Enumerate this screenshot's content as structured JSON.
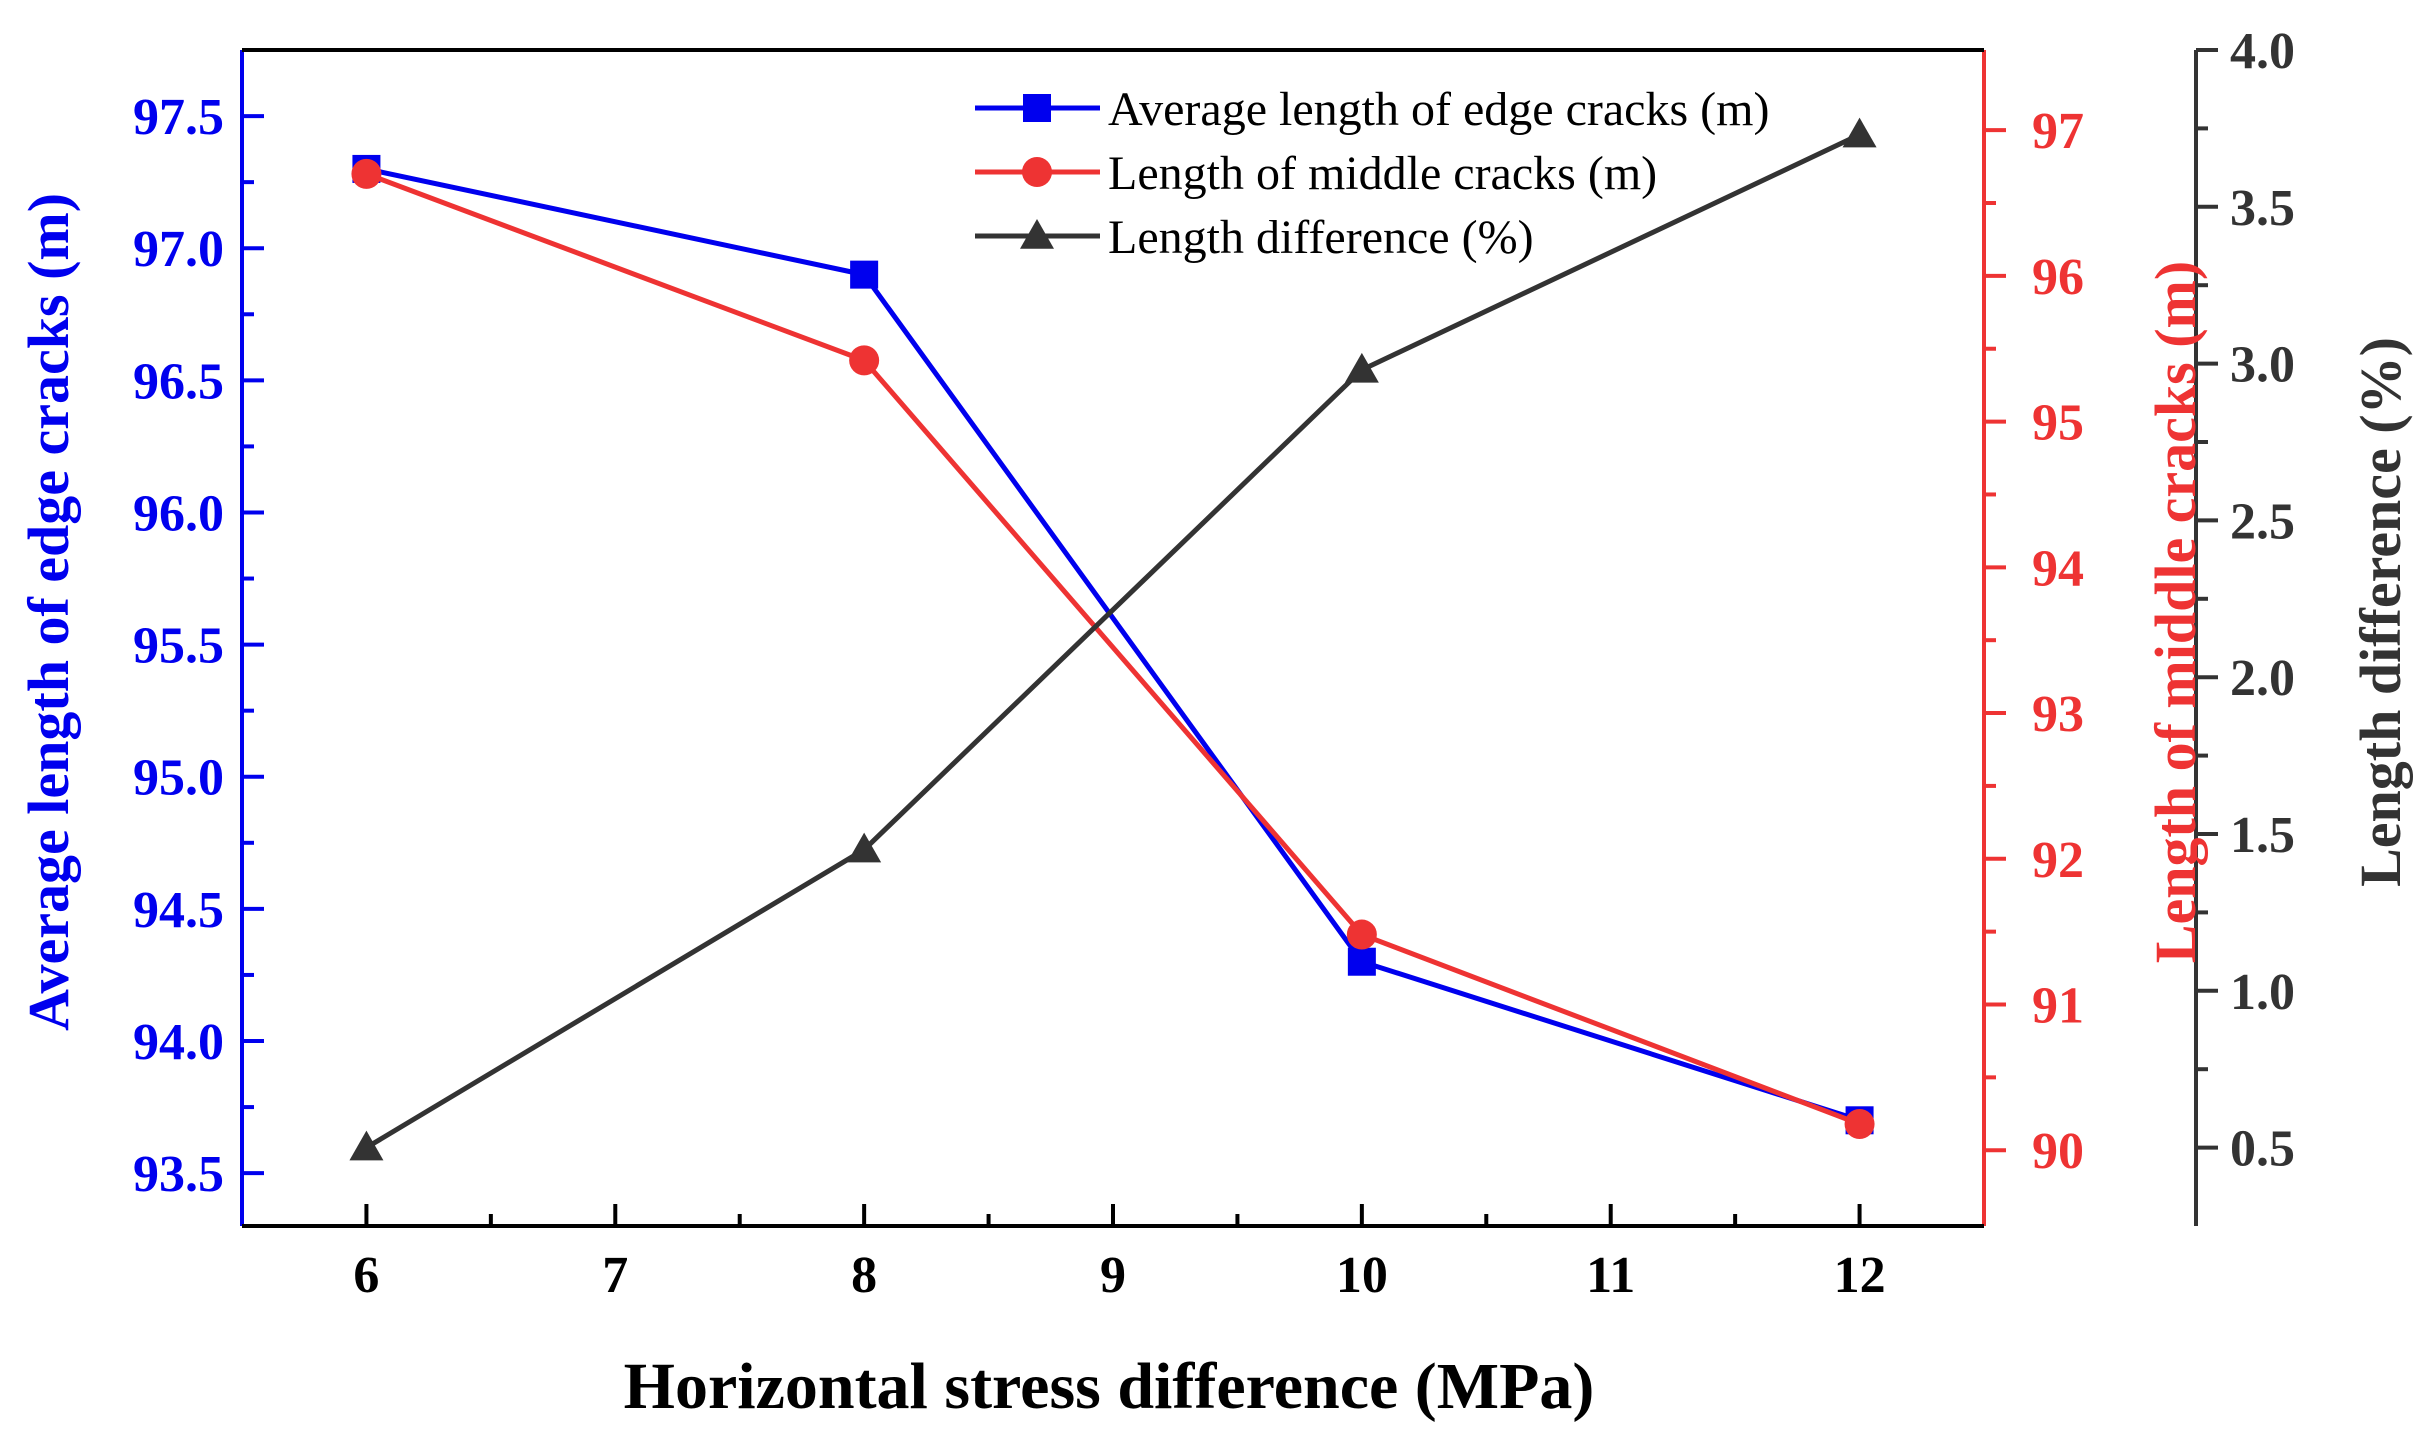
{
  "chart_data": {
    "type": "line",
    "xlabel": "Horizontal stress difference (MPa)",
    "x": [
      6,
      8,
      10,
      12
    ],
    "xlim": [
      5.5,
      12.5
    ],
    "xticks": [
      6,
      7,
      8,
      9,
      10,
      11,
      12
    ],
    "grid": false,
    "legend_position": "top-right",
    "axes": {
      "left": {
        "label": "Average length of edge cracks (m)",
        "range": [
          93.3,
          97.75
        ],
        "ticks": [
          "93.5",
          "94.0",
          "94.5",
          "95.0",
          "95.5",
          "96.0",
          "96.5",
          "97.0",
          "97.5"
        ],
        "color": "#0000ee"
      },
      "right": {
        "label": "Length of middle cracks (m)",
        "range": [
          89.48,
          97.55
        ],
        "ticks": [
          "90",
          "91",
          "92",
          "93",
          "94",
          "95",
          "96",
          "97"
        ],
        "color": "#ee3333"
      },
      "far_right": {
        "label": "Length difference (%)",
        "range": [
          0.25,
          4.0
        ],
        "ticks": [
          "0.5",
          "1.0",
          "1.5",
          "2.0",
          "2.5",
          "3.0",
          "3.5",
          "4.0"
        ],
        "color": "#333333"
      }
    },
    "series": [
      {
        "name": "Average length of edge cracks (m)",
        "axis": "left",
        "marker": "square",
        "color": "#0000ee",
        "values": [
          97.3,
          96.9,
          94.3,
          93.7
        ]
      },
      {
        "name": "Length of middle cracks (m)",
        "axis": "right",
        "marker": "circle",
        "color": "#ee3333",
        "values": [
          96.7,
          95.42,
          91.48,
          90.18
        ]
      },
      {
        "name": "Length difference (%)",
        "axis": "far_right",
        "marker": "triangle",
        "color": "#333333",
        "values": [
          0.5,
          1.45,
          2.98,
          3.73
        ]
      }
    ]
  }
}
